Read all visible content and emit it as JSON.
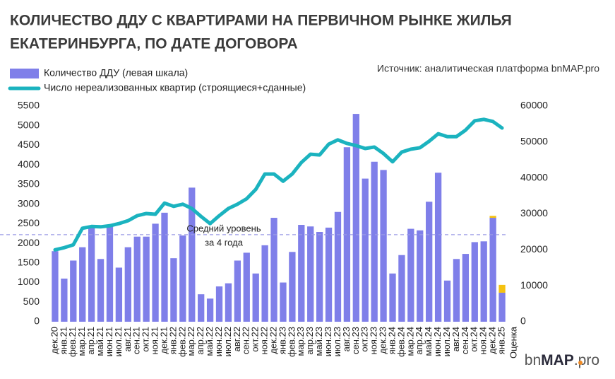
{
  "chart_data": {
    "type": "bar-line",
    "title": [
      "КОЛИЧЕСТВО ДДУ С КВАРТИРАМИ НА ПЕРВИЧНОМ РЫНКЕ ЖИЛЬЯ",
      "ЕКАТЕРИНБУРГА, ПО ДАТЕ ДОГОВОРА"
    ],
    "source": "Источник: аналитическая платформа bnMAP.pro",
    "logo": [
      "bn",
      "MAP",
      ".pro"
    ],
    "categories": [
      "дек.20",
      "янв.21",
      "фев.21",
      "мар.21",
      "апр.21",
      "май.21",
      "июн.21",
      "июл.21",
      "авг.21",
      "сен.21",
      "окт.21",
      "ноя.21",
      "дек.21",
      "янв.22",
      "фев.22",
      "мар.22",
      "апр.22",
      "май.22",
      "июн.22",
      "июл.22",
      "авг.22",
      "сен.22",
      "окт.22",
      "ноя.22",
      "дек.22",
      "янв.23",
      "фев.23",
      "мар.23",
      "апр.23",
      "май.23",
      "июн.23",
      "июл.23",
      "авг.23",
      "сен.23",
      "окт.23",
      "ноя.23",
      "дек.23",
      "янв.24",
      "фев.24",
      "мар.24",
      "апр.24",
      "май.24",
      "июн.24",
      "июл.24",
      "авг.24",
      "сен.24",
      "окт.24",
      "ноя.24",
      "дек.24",
      "янв.25"
    ],
    "series": [
      {
        "name": "Количество ДДУ (левая шкала)",
        "type": "bar",
        "axis": "y",
        "color": "#7f7fe9",
        "values": [
          1800,
          1100,
          1560,
          1900,
          2400,
          1600,
          2440,
          1380,
          1900,
          2170,
          2170,
          2500,
          2780,
          1620,
          2200,
          3420,
          700,
          590,
          900,
          980,
          1560,
          1760,
          1230,
          1950,
          2650,
          1000,
          1780,
          2470,
          2430,
          2290,
          2400,
          2800,
          4450,
          5300,
          3650,
          4080,
          3870,
          1230,
          1700,
          2370,
          2330,
          3060,
          3800,
          1050,
          1600,
          1730,
          2030,
          2050,
          2650,
          740
        ]
      },
      {
        "name": "Оценка",
        "type": "bar",
        "axis": "y",
        "color": "#f5c211",
        "stack_on": 0,
        "legend": false,
        "values": [
          null,
          null,
          null,
          null,
          null,
          null,
          null,
          null,
          null,
          null,
          null,
          null,
          null,
          null,
          null,
          null,
          null,
          null,
          null,
          null,
          null,
          null,
          null,
          null,
          null,
          null,
          null,
          null,
          null,
          null,
          null,
          null,
          null,
          null,
          null,
          null,
          null,
          null,
          null,
          null,
          null,
          null,
          null,
          null,
          null,
          null,
          null,
          null,
          50,
          200
        ]
      },
      {
        "name": "Число нереализованных квартир (строящиеся+сданные)",
        "type": "line",
        "axis": "y2",
        "color": "#1bb3bf",
        "values": [
          20000,
          20600,
          21400,
          26000,
          26500,
          26400,
          26700,
          27300,
          28100,
          29500,
          30100,
          29900,
          33000,
          32100,
          32700,
          31500,
          29300,
          27300,
          29500,
          31500,
          32700,
          34200,
          36800,
          41100,
          41100,
          39100,
          41100,
          44300,
          46600,
          46400,
          49400,
          50600,
          49600,
          49000,
          48200,
          48600,
          46800,
          44500,
          47200,
          48000,
          48400,
          50200,
          52300,
          51500,
          51500,
          53300,
          55900,
          56300,
          55700,
          53900
        ]
      }
    ],
    "reference_line": {
      "value": 2220,
      "label": [
        "Средний уровень",
        "за 4 года"
      ],
      "color": "#9b9be6"
    },
    "ylim": [
      0,
      5500
    ],
    "yticks": [
      0,
      500,
      1000,
      1500,
      2000,
      2500,
      3000,
      3500,
      4000,
      4500,
      5000,
      5500
    ],
    "y2lim": [
      0,
      60000
    ],
    "y2ticks": [
      0,
      10000,
      20000,
      30000,
      40000,
      50000,
      60000
    ],
    "grid": false
  }
}
